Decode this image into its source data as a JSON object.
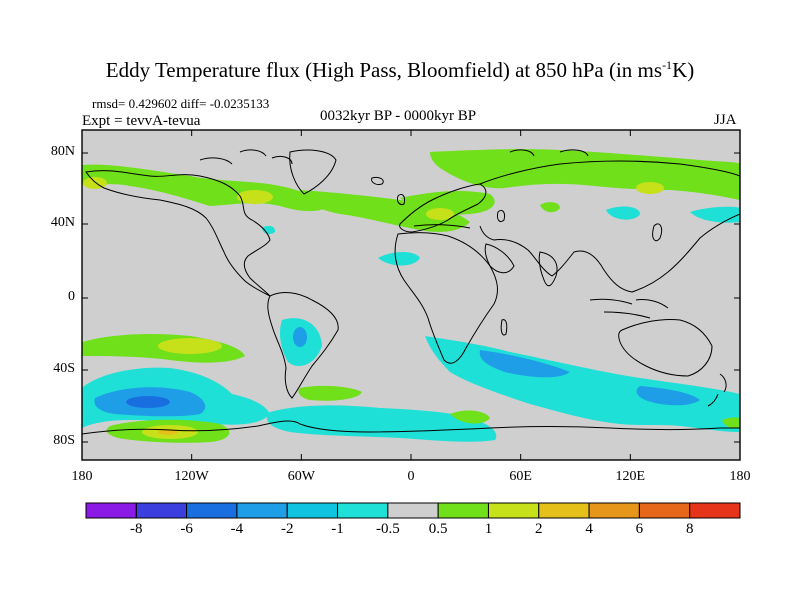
{
  "title": {
    "main": "Eddy Temperature flux (High Pass, Bloomfield) at 850 hPa (in ms",
    "sup": "-1",
    "end": "K)"
  },
  "stats": "rmsd= 0.429602 diff= -0.0235133",
  "experiment": "Expt = tevvA-tevua",
  "period": "0032kyr BP - 0000kyr BP",
  "season": "JJA",
  "axes": {
    "y_ticks": [
      "80N",
      "40N",
      "0",
      "40S",
      "80S"
    ],
    "x_ticks": [
      "180",
      "120W",
      "60W",
      "0",
      "60E",
      "120E",
      "180"
    ]
  },
  "colorbar": {
    "labels": [
      "-8",
      "-6",
      "-4",
      "-2",
      "-1",
      "-0.5",
      "0.5",
      "1",
      "2",
      "4",
      "6",
      "8"
    ],
    "colors": [
      "#8c1ae6",
      "#3a3fdd",
      "#1a6fe0",
      "#1e9ee6",
      "#10c3e0",
      "#1ee0d6",
      "#cfcfcf",
      "#6fe01a",
      "#c6e01a",
      "#e6c01a",
      "#e6961a",
      "#e6661a",
      "#e6341a"
    ]
  },
  "map": {
    "background": "#cfcfcf",
    "lon_range": [
      -180,
      180
    ],
    "lat_range": [
      -90,
      90
    ],
    "scale_ylim_deg": [
      -90,
      90
    ]
  }
}
